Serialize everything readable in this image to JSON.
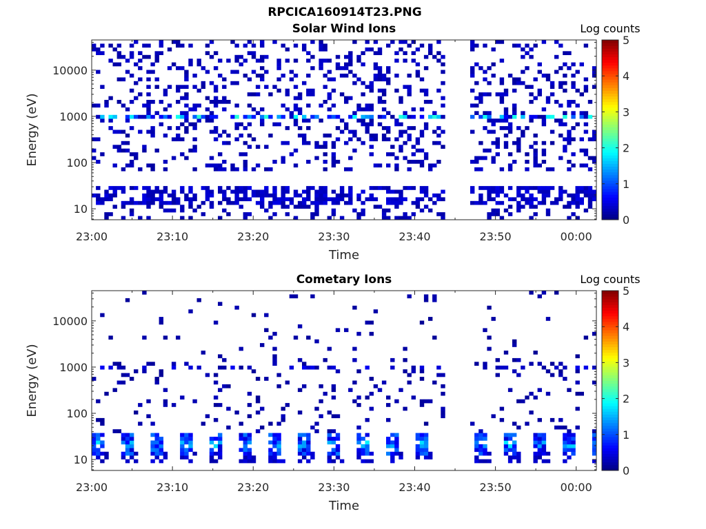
{
  "figure": {
    "title": "RPCICA160914T23.PNG"
  },
  "chart_data": [
    {
      "type": "heatmap",
      "title": "Solar Wind Ions",
      "xlabel": "Time",
      "ylabel": "Energy (eV)",
      "xticks": [
        "23:00",
        "23:10",
        "23:20",
        "23:30",
        "23:40",
        "23:50",
        "00:00"
      ],
      "yticks": [
        "10",
        "100",
        "1000",
        "10000"
      ],
      "y_scale": "log",
      "ylim": [
        5.8,
        45000
      ],
      "xlim_minutes": [
        0,
        62.5
      ],
      "data_gap_minutes": [
        43.5,
        46.5
      ],
      "colorbar": {
        "label": "Log counts",
        "ticks": [
          "0",
          "1",
          "2",
          "3",
          "4",
          "5"
        ],
        "range": [
          0,
          5
        ],
        "colormap": "jet"
      },
      "features": {
        "peak_energy_eV": 1000,
        "peak_value": 2.1,
        "background_value": 0.15,
        "low_energy_band_eV": [
          12,
          30
        ],
        "low_energy_value": 0.2
      }
    },
    {
      "type": "heatmap",
      "title": "Cometary Ions",
      "xlabel": "Time",
      "ylabel": "Energy (eV)",
      "xticks": [
        "23:00",
        "23:10",
        "23:20",
        "23:30",
        "23:40",
        "23:50",
        "00:00"
      ],
      "yticks": [
        "10",
        "100",
        "1000",
        "10000"
      ],
      "y_scale": "log",
      "ylim": [
        5.8,
        45000
      ],
      "xlim_minutes": [
        0,
        62.5
      ],
      "data_gap_minutes": [
        43.5,
        46.5
      ],
      "colorbar": {
        "label": "Log counts",
        "ticks": [
          "0",
          "1",
          "2",
          "3",
          "4",
          "5"
        ],
        "range": [
          0,
          5
        ],
        "colormap": "jet"
      },
      "features": {
        "peak_energy_eV": 22,
        "peak_value": 1.8,
        "background_value": 0.1,
        "periodic_bursts_every_minutes": 3.2
      }
    }
  ]
}
